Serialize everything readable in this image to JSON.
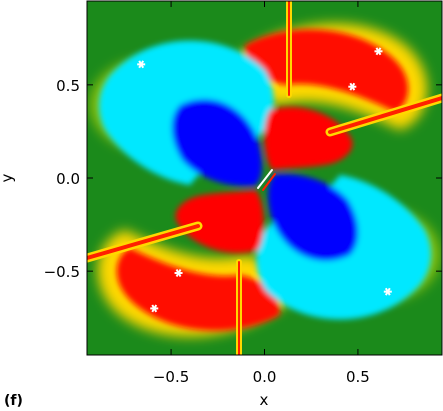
{
  "chart_data": {
    "type": "heatmap",
    "panel_label": "(f)",
    "xlabel": "x",
    "ylabel": "y",
    "xlim": [
      -0.95,
      0.95
    ],
    "ylim": [
      -0.95,
      0.95
    ],
    "x_ticks": [
      -0.5,
      0.0,
      0.5
    ],
    "x_tick_labels": [
      "−0.5",
      "0.0",
      "0.5"
    ],
    "y_ticks": [
      -0.5,
      0.0,
      0.5
    ],
    "y_tick_labels": [
      "−0.5",
      "0.0",
      "0.5"
    ],
    "grid": false,
    "colormap": [
      "#0000ff",
      "#00e0ff",
      "#008000",
      "#ffff00",
      "#ff0000"
    ],
    "markers": [
      {
        "x": -0.66,
        "y": 0.61
      },
      {
        "x": 0.61,
        "y": 0.68
      },
      {
        "x": 0.47,
        "y": 0.49
      },
      {
        "x": -0.46,
        "y": -0.51
      },
      {
        "x": 0.66,
        "y": -0.61
      },
      {
        "x": -0.59,
        "y": -0.7
      }
    ],
    "marker_color": "#ffffff"
  }
}
